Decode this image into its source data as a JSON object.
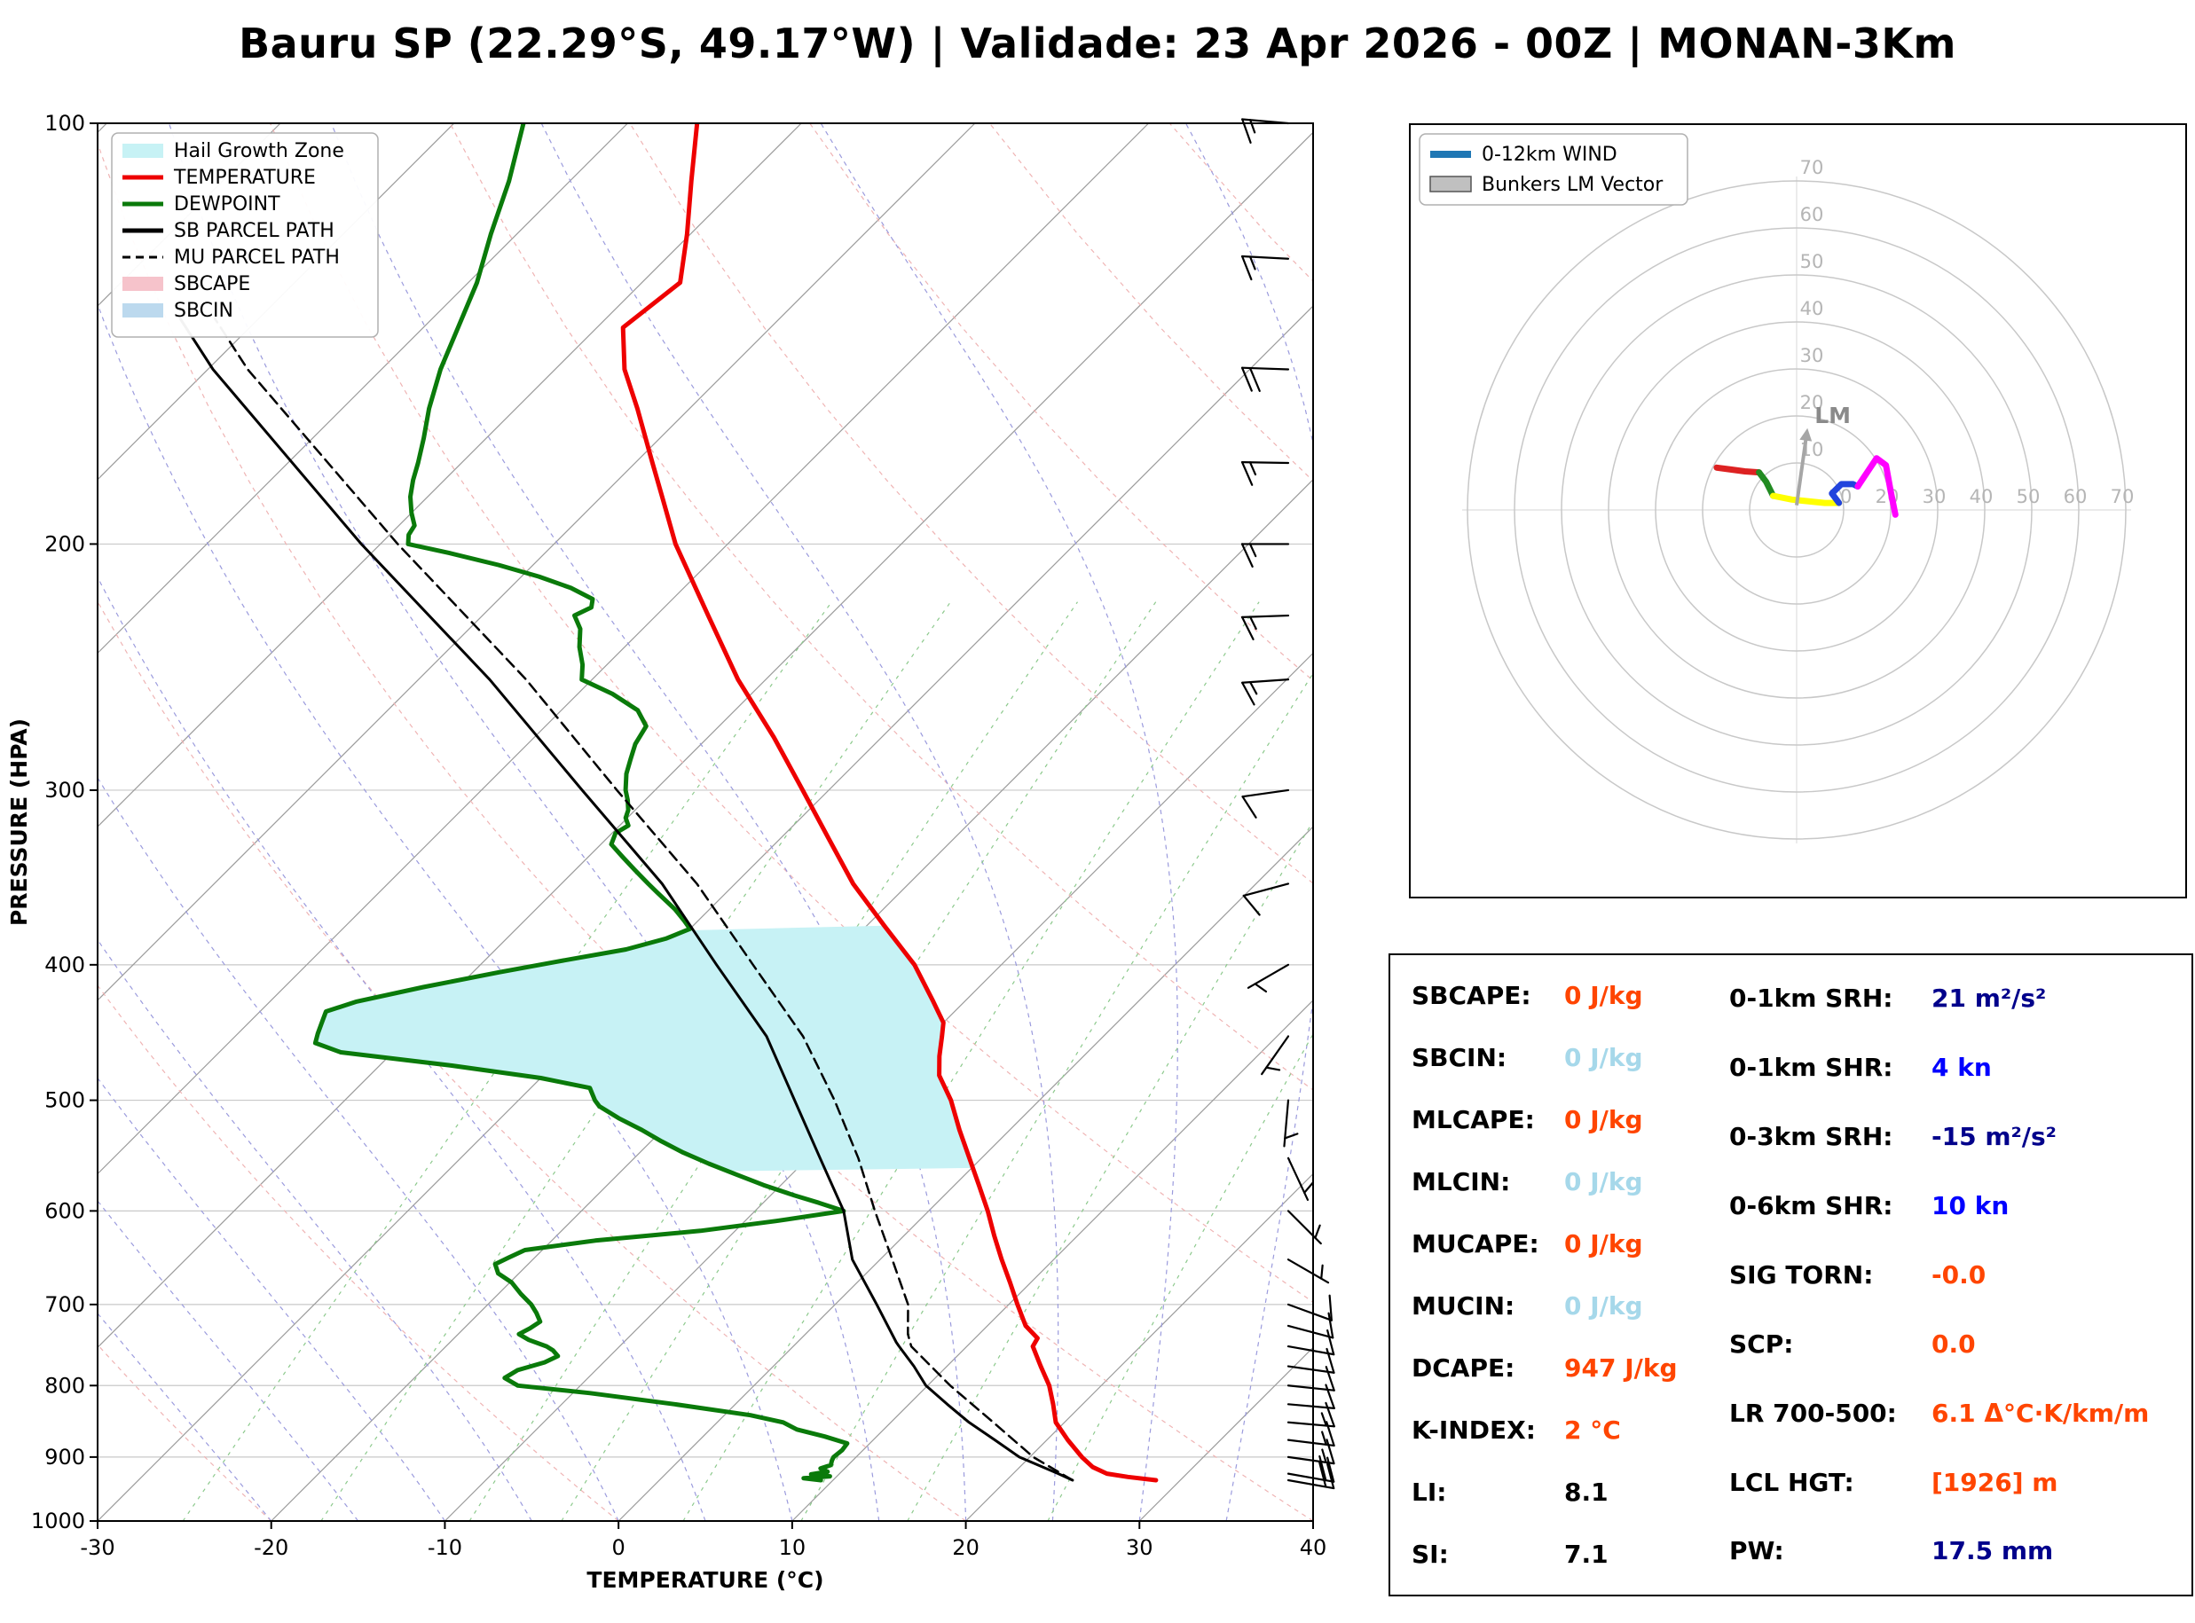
{
  "title": "Bauru SP (22.29°S, 49.17°W) | Validade: 23 Apr 2026 - 00Z | MONAN-3Km",
  "skewt": {
    "xlabel": "TEMPERATURE (°C)",
    "ylabel": "PRESSURE (HPA)",
    "legend": [
      {
        "label": "Hail Growth Zone",
        "kind": "patch",
        "color": "#c7f2f5"
      },
      {
        "label": "TEMPERATURE",
        "kind": "line",
        "color": "#ee0000"
      },
      {
        "label": "DEWPOINT",
        "kind": "line",
        "color": "#0a7a0a"
      },
      {
        "label": "SB PARCEL PATH",
        "kind": "line",
        "color": "#000000"
      },
      {
        "label": "MU PARCEL PATH",
        "kind": "dashed",
        "color": "#000000"
      },
      {
        "label": "SBCAPE",
        "kind": "patch",
        "color": "#f6c3cb"
      },
      {
        "label": "SBCIN",
        "kind": "patch",
        "color": "#bcd9ee"
      }
    ]
  },
  "hodograph_legend": [
    {
      "label": "0-12km WIND",
      "kind": "line",
      "color": "#1f77b4"
    },
    {
      "label": "Bunkers LM Vector",
      "kind": "patch",
      "color": "#c0c0c0"
    }
  ],
  "indices": {
    "left": [
      {
        "label": "SBCAPE:",
        "value": "0 J/kg",
        "color": "#FF4500"
      },
      {
        "label": "SBCIN:",
        "value": "0 J/kg",
        "color": "#A6D8EA"
      },
      {
        "label": "MLCAPE:",
        "value": "0 J/kg",
        "color": "#FF4500"
      },
      {
        "label": "MLCIN:",
        "value": "0 J/kg",
        "color": "#A6D8EA"
      },
      {
        "label": "MUCAPE:",
        "value": "0 J/kg",
        "color": "#FF4500"
      },
      {
        "label": "MUCIN:",
        "value": "0 J/kg",
        "color": "#A6D8EA"
      },
      {
        "label": "DCAPE:",
        "value": "947 J/kg",
        "color": "#FF4500"
      },
      {
        "label": "K-INDEX:",
        "value": "2 °C",
        "color": "#FF4500"
      },
      {
        "label": "LI:",
        "value": "8.1",
        "color": "#000000"
      },
      {
        "label": "SI:",
        "value": "7.1",
        "color": "#000000"
      }
    ],
    "right": [
      {
        "label": "0-1km SRH:",
        "value": "21 m²/s²",
        "color": "#00008B"
      },
      {
        "label": "0-1km SHR:",
        "value": "4 kn",
        "color": "#0000FF"
      },
      {
        "label": "0-3km SRH:",
        "value": "-15 m²/s²",
        "color": "#00008B"
      },
      {
        "label": "0-6km SHR:",
        "value": "10 kn",
        "color": "#0000FF"
      },
      {
        "label": "SIG TORN:",
        "value": "-0.0",
        "color": "#FF4500"
      },
      {
        "label": "SCP:",
        "value": "0.0",
        "color": "#FF4500"
      },
      {
        "label": "LR 700-500:",
        "value": "6.1 Δ°C·K/km/m",
        "color": "#FF4500"
      },
      {
        "label": "LCL HGT:",
        "value": "[1926] m",
        "color": "#FF4500"
      },
      {
        "label": "PW:",
        "value": "17.5 mm",
        "color": "#00008B"
      }
    ]
  },
  "chart_data": {
    "type": "line",
    "subtype": "skewt-log-p-sounding",
    "title": "Bauru SP (22.29°S, 49.17°W) | Validade: 23 Apr 2026 - 00Z | MONAN-3Km",
    "xlabel": "TEMPERATURE (°C)",
    "ylabel": "PRESSURE (HPA)",
    "xlim": [
      -30,
      40
    ],
    "p_range": [
      100,
      1000
    ],
    "skew_deg": 45,
    "grid": true,
    "legend_position": "upper left",
    "x_ticks": [
      -30,
      -20,
      -10,
      0,
      10,
      20,
      30,
      40
    ],
    "p_ticks": [
      100,
      200,
      300,
      400,
      500,
      600,
      700,
      800,
      900,
      1000
    ],
    "series": [
      {
        "name": "TEMPERATURE",
        "color": "#ee0000",
        "style": "solid",
        "width": 5,
        "points": [
          [
            935,
            28.6
          ],
          [
            930,
            26.8
          ],
          [
            925,
            25.4
          ],
          [
            915,
            24.2
          ],
          [
            900,
            23.0
          ],
          [
            875,
            21.2
          ],
          [
            850,
            19.5
          ],
          [
            825,
            18.3
          ],
          [
            800,
            17.0
          ],
          [
            775,
            15.4
          ],
          [
            750,
            13.8
          ],
          [
            740,
            13.6
          ],
          [
            725,
            12.2
          ],
          [
            700,
            10.5
          ],
          [
            675,
            8.8
          ],
          [
            650,
            7.0
          ],
          [
            625,
            5.2
          ],
          [
            600,
            3.4
          ],
          [
            575,
            1.4
          ],
          [
            550,
            -0.7
          ],
          [
            525,
            -2.9
          ],
          [
            500,
            -5.1
          ],
          [
            480,
            -7.2
          ],
          [
            465,
            -8.3
          ],
          [
            450,
            -9.3
          ],
          [
            440,
            -10.0
          ],
          [
            425,
            -11.8
          ],
          [
            400,
            -15.0
          ],
          [
            375,
            -19.0
          ],
          [
            350,
            -23.2
          ],
          [
            325,
            -27.2
          ],
          [
            300,
            -31.5
          ],
          [
            275,
            -36.2
          ],
          [
            250,
            -41.6
          ],
          [
            225,
            -47.0
          ],
          [
            200,
            -53.0
          ],
          [
            185,
            -56.5
          ],
          [
            175,
            -59.0
          ],
          [
            160,
            -63.0
          ],
          [
            150,
            -66.0
          ],
          [
            140,
            -68.5
          ],
          [
            130,
            -67.8
          ],
          [
            120,
            -70.2
          ],
          [
            110,
            -73.0
          ],
          [
            100,
            -76.0
          ]
        ]
      },
      {
        "name": "DEWPOINT",
        "color": "#0a7a0a",
        "style": "solid",
        "width": 5,
        "points": [
          [
            935,
            9.3
          ],
          [
            932,
            8.2
          ],
          [
            929,
            9.6
          ],
          [
            926,
            8.4
          ],
          [
            922,
            9.2
          ],
          [
            917,
            8.6
          ],
          [
            912,
            9.0
          ],
          [
            905,
            8.8
          ],
          [
            900,
            8.7
          ],
          [
            890,
            8.8
          ],
          [
            880,
            8.7
          ],
          [
            870,
            7.0
          ],
          [
            860,
            5.0
          ],
          [
            850,
            3.8
          ],
          [
            840,
            1.5
          ],
          [
            825,
            -3.5
          ],
          [
            810,
            -9.0
          ],
          [
            800,
            -13.6
          ],
          [
            790,
            -14.8
          ],
          [
            780,
            -14.5
          ],
          [
            770,
            -13.4
          ],
          [
            762,
            -13.0
          ],
          [
            755,
            -13.6
          ],
          [
            750,
            -14.2
          ],
          [
            742,
            -15.6
          ],
          [
            735,
            -16.5
          ],
          [
            728,
            -16.2
          ],
          [
            720,
            -16.0
          ],
          [
            710,
            -16.7
          ],
          [
            700,
            -17.5
          ],
          [
            688,
            -18.7
          ],
          [
            675,
            -19.9
          ],
          [
            665,
            -21.2
          ],
          [
            655,
            -21.9
          ],
          [
            648,
            -21.5
          ],
          [
            640,
            -21.0
          ],
          [
            630,
            -17.5
          ],
          [
            620,
            -12.0
          ],
          [
            610,
            -8.2
          ],
          [
            600,
            -4.9
          ],
          [
            592,
            -6.8
          ],
          [
            585,
            -8.6
          ],
          [
            575,
            -11.0
          ],
          [
            565,
            -13.2
          ],
          [
            555,
            -15.4
          ],
          [
            545,
            -17.5
          ],
          [
            535,
            -19.4
          ],
          [
            525,
            -21.2
          ],
          [
            515,
            -23.2
          ],
          [
            505,
            -25.0
          ],
          [
            500,
            -25.6
          ],
          [
            490,
            -26.6
          ],
          [
            482,
            -30.0
          ],
          [
            472,
            -36.0
          ],
          [
            462,
            -43.0
          ],
          [
            455,
            -45.0
          ],
          [
            448,
            -45.4
          ],
          [
            440,
            -45.8
          ],
          [
            432,
            -46.2
          ],
          [
            425,
            -45.0
          ],
          [
            415,
            -42.0
          ],
          [
            405,
            -38.5
          ],
          [
            398,
            -35.8
          ],
          [
            390,
            -32.5
          ],
          [
            383,
            -30.8
          ],
          [
            377,
            -30.0
          ],
          [
            372,
            -30.8
          ],
          [
            365,
            -32.0
          ],
          [
            355,
            -34.0
          ],
          [
            350,
            -35.0
          ],
          [
            342,
            -36.6
          ],
          [
            335,
            -38.0
          ],
          [
            328,
            -39.4
          ],
          [
            322,
            -39.8
          ],
          [
            318,
            -39.5
          ],
          [
            314,
            -40.1
          ],
          [
            310,
            -40.4
          ],
          [
            305,
            -41.0
          ],
          [
            300,
            -41.7
          ],
          [
            292,
            -42.6
          ],
          [
            285,
            -43.2
          ],
          [
            278,
            -43.8
          ],
          [
            270,
            -44.2
          ],
          [
            263,
            -45.6
          ],
          [
            256,
            -48.0
          ],
          [
            250,
            -50.6
          ],
          [
            244,
            -51.4
          ],
          [
            237,
            -52.6
          ],
          [
            230,
            -53.6
          ],
          [
            225,
            -54.7
          ],
          [
            222,
            -54.2
          ],
          [
            219,
            -54.6
          ],
          [
            215,
            -56.5
          ],
          [
            211,
            -59.0
          ],
          [
            207,
            -62.0
          ],
          [
            203,
            -65.5
          ],
          [
            200,
            -68.4
          ],
          [
            197,
            -68.9
          ],
          [
            194,
            -69.1
          ],
          [
            190,
            -70.0
          ],
          [
            185,
            -71.0
          ],
          [
            180,
            -71.8
          ],
          [
            175,
            -72.5
          ],
          [
            168,
            -73.6
          ],
          [
            160,
            -75.0
          ],
          [
            150,
            -76.6
          ],
          [
            140,
            -78.0
          ],
          [
            130,
            -79.5
          ],
          [
            120,
            -81.5
          ],
          [
            110,
            -83.5
          ],
          [
            100,
            -86.0
          ]
        ]
      },
      {
        "name": "SB PARCEL PATH",
        "color": "#000000",
        "style": "solid",
        "width": 3,
        "points": [
          [
            935,
            23.8
          ],
          [
            925,
            22.6
          ],
          [
            900,
            19.4
          ],
          [
            875,
            17.0
          ],
          [
            850,
            14.5
          ],
          [
            825,
            12.2
          ],
          [
            800,
            9.9
          ],
          [
            775,
            8.1
          ],
          [
            750,
            6.1
          ],
          [
            745,
            5.7
          ],
          [
            700,
            2.4
          ],
          [
            650,
            -1.6
          ],
          [
            600,
            -4.9
          ],
          [
            550,
            -9.3
          ],
          [
            500,
            -14.1
          ],
          [
            450,
            -19.4
          ],
          [
            400,
            -26.4
          ],
          [
            350,
            -34.2
          ],
          [
            300,
            -44.2
          ],
          [
            250,
            -55.9
          ],
          [
            200,
            -71.1
          ],
          [
            150,
            -89.7
          ],
          [
            138,
            -94.5
          ]
        ]
      },
      {
        "name": "MU PARCEL PATH",
        "color": "#000000",
        "style": "dashed",
        "width": 2.5,
        "points": [
          [
            935,
            23.8
          ],
          [
            900,
            20.2
          ],
          [
            850,
            15.9
          ],
          [
            800,
            11.3
          ],
          [
            750,
            6.8
          ],
          [
            735,
            5.9
          ],
          [
            700,
            4.2
          ],
          [
            650,
            0.7
          ],
          [
            600,
            -3.1
          ],
          [
            550,
            -7.1
          ],
          [
            500,
            -11.8
          ],
          [
            450,
            -17.3
          ],
          [
            400,
            -24.3
          ],
          [
            350,
            -32.2
          ],
          [
            300,
            -42.2
          ],
          [
            250,
            -53.8
          ],
          [
            200,
            -69.0
          ],
          [
            150,
            -87.7
          ],
          [
            138,
            -92.5
          ]
        ]
      }
    ],
    "hail_growth_zone": {
      "p_bottom": 562,
      "p_top": 375,
      "color": "#c7f2f5"
    },
    "wind_barbs": [
      [
        935,
        100,
        20
      ],
      [
        925,
        100,
        18
      ],
      [
        900,
        98,
        16
      ],
      [
        875,
        97,
        14
      ],
      [
        850,
        95,
        13
      ],
      [
        825,
        95,
        12
      ],
      [
        800,
        96,
        11
      ],
      [
        775,
        98,
        10
      ],
      [
        750,
        100,
        9
      ],
      [
        725,
        105,
        8
      ],
      [
        700,
        110,
        8
      ],
      [
        650,
        120,
        7
      ],
      [
        600,
        135,
        6
      ],
      [
        550,
        155,
        5
      ],
      [
        500,
        185,
        5
      ],
      [
        450,
        215,
        5
      ],
      [
        400,
        240,
        6
      ],
      [
        350,
        255,
        8
      ],
      [
        300,
        262,
        10
      ],
      [
        250,
        266,
        13
      ],
      [
        225,
        268,
        14
      ],
      [
        200,
        270,
        15
      ],
      [
        175,
        271,
        16
      ],
      [
        150,
        272,
        18
      ],
      [
        125,
        273,
        17
      ],
      [
        100,
        275,
        15
      ]
    ],
    "hodograph": {
      "rings_kn": [
        10,
        20,
        30,
        40,
        50,
        60,
        70
      ],
      "lm_label": "LM",
      "lm_vector_kn": [
        2.3,
        17.4
      ],
      "segments": [
        {
          "layer": "0-1 km",
          "color": "#dd2222",
          "points_uv_kn": [
            [
              -17,
              9
            ],
            [
              -14,
              8.6
            ],
            [
              -11,
              8.2
            ],
            [
              -8,
              8
            ]
          ]
        },
        {
          "layer": "1-3 km",
          "color": "#228B22",
          "points_uv_kn": [
            [
              -8,
              8
            ],
            [
              -6.5,
              6
            ],
            [
              -5.5,
              4
            ],
            [
              -5,
              3
            ]
          ]
        },
        {
          "layer": "3-6 km",
          "color": "#ffff00",
          "points_uv_kn": [
            [
              -5,
              3
            ],
            [
              -1,
              2.2
            ],
            [
              3,
              1.8
            ],
            [
              6,
              1.5
            ],
            [
              9,
              1.5
            ]
          ]
        },
        {
          "layer": "6-9 km",
          "color": "#2244dd",
          "points_uv_kn": [
            [
              9,
              1.5
            ],
            [
              7.5,
              3.5
            ],
            [
              9.5,
              5.5
            ],
            [
              12,
              5.5
            ],
            [
              13,
              5
            ]
          ]
        },
        {
          "layer": "9-12 km",
          "color": "#ff00ff",
          "points_uv_kn": [
            [
              13,
              5
            ],
            [
              15,
              8
            ],
            [
              17,
              11
            ],
            [
              19,
              9.5
            ],
            [
              20,
              4
            ],
            [
              21,
              -1
            ]
          ]
        }
      ]
    }
  }
}
